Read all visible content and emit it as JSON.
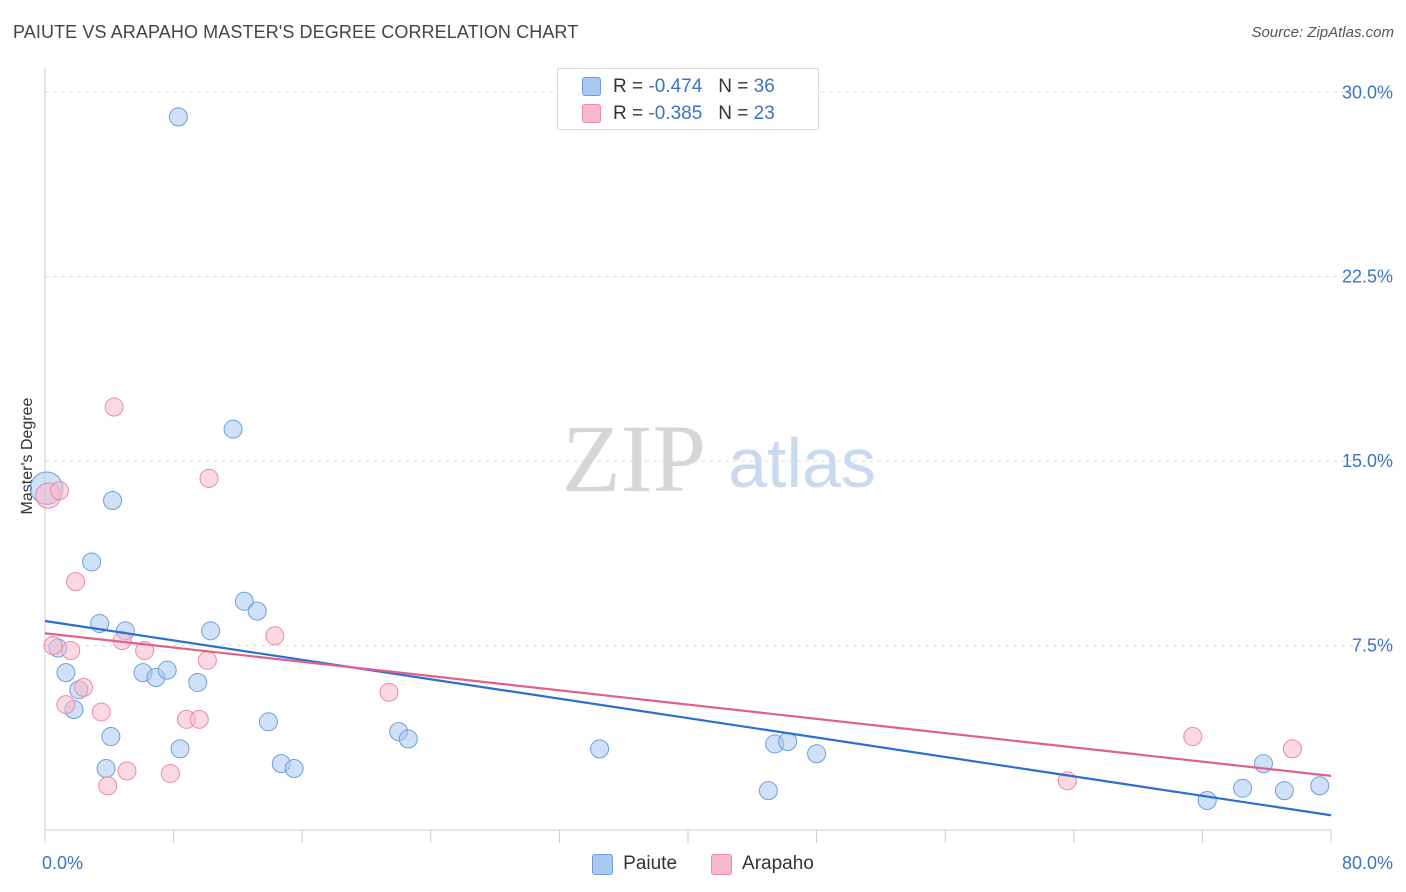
{
  "header": {
    "title": "PAIUTE VS ARAPAHO MASTER'S DEGREE CORRELATION CHART",
    "source": "Source: ZipAtlas.com"
  },
  "watermark": {
    "zip": "ZIP",
    "atlas": "atlas"
  },
  "legend": {
    "rows": [
      {
        "r_label": "R =",
        "r_value": "-0.474",
        "n_label": "N =",
        "n_value": "36"
      },
      {
        "r_label": "R =",
        "r_value": "-0.385",
        "n_label": "N =",
        "n_value": "23"
      }
    ]
  },
  "chart_data": {
    "type": "scatter",
    "title": "PAIUTE VS ARAPAHO MASTER'S DEGREE CORRELATION CHART",
    "xlabel": "",
    "ylabel": "Master's Degree",
    "xlim": [
      0,
      80
    ],
    "ylim": [
      0,
      30.5
    ],
    "y_ticks": [
      7.5,
      15.0,
      22.5,
      30.0
    ],
    "y_tick_labels": [
      "7.5%",
      "15.0%",
      "22.5%",
      "30.0%"
    ],
    "x_tick_labels": {
      "min": "0.0%",
      "max": "80.0%"
    },
    "grid": true,
    "legend_placement": "top-center",
    "colors": {
      "paiute_fill": "#aac8f0",
      "paiute_stroke": "#6a9fdc",
      "paiute_line": "#2b6fd0",
      "arapaho_fill": "#f7b9cb",
      "arapaho_stroke": "#ee88a8",
      "arapaho_line": "#e0608c",
      "tick_label": "#3a73c4"
    },
    "series": [
      {
        "name": "Paiute",
        "trend": [
          [
            0,
            8.5
          ],
          [
            80,
            0.6
          ]
        ],
        "points": [
          [
            0.1,
            13.9,
            1.8
          ],
          [
            0.8,
            7.4,
            1
          ],
          [
            1.3,
            6.4,
            1
          ],
          [
            1.8,
            4.9,
            1
          ],
          [
            2.1,
            5.7,
            1
          ],
          [
            2.9,
            10.9,
            1
          ],
          [
            3.4,
            8.4,
            1
          ],
          [
            3.8,
            2.5,
            1
          ],
          [
            4.1,
            3.8,
            1
          ],
          [
            4.2,
            13.4,
            1
          ],
          [
            5.0,
            8.1,
            1
          ],
          [
            6.1,
            6.4,
            1
          ],
          [
            6.9,
            6.2,
            1
          ],
          [
            7.6,
            6.5,
            1
          ],
          [
            8.3,
            29.0,
            1
          ],
          [
            8.4,
            3.3,
            1
          ],
          [
            9.5,
            6.0,
            1
          ],
          [
            10.3,
            8.1,
            1
          ],
          [
            11.7,
            16.3,
            1
          ],
          [
            12.4,
            9.3,
            1
          ],
          [
            13.2,
            8.9,
            1
          ],
          [
            13.9,
            4.4,
            1
          ],
          [
            14.7,
            2.7,
            1
          ],
          [
            15.5,
            2.5,
            1
          ],
          [
            22.0,
            4.0,
            1
          ],
          [
            22.6,
            3.7,
            1
          ],
          [
            34.5,
            3.3,
            1
          ],
          [
            45.0,
            1.6,
            1
          ],
          [
            45.4,
            3.5,
            1
          ],
          [
            46.2,
            3.6,
            1
          ],
          [
            48.0,
            3.1,
            1
          ],
          [
            72.3,
            1.2,
            1
          ],
          [
            74.5,
            1.7,
            1
          ],
          [
            75.8,
            2.7,
            1
          ],
          [
            77.1,
            1.6,
            1
          ],
          [
            79.3,
            1.8,
            1
          ]
        ]
      },
      {
        "name": "Arapaho",
        "trend": [
          [
            0,
            8.0
          ],
          [
            80,
            2.2
          ]
        ],
        "points": [
          [
            0.2,
            13.6,
            1.4
          ],
          [
            0.5,
            7.5,
            1
          ],
          [
            0.9,
            13.8,
            1
          ],
          [
            1.3,
            5.1,
            1
          ],
          [
            1.6,
            7.3,
            1
          ],
          [
            1.9,
            10.1,
            1
          ],
          [
            2.4,
            5.8,
            1
          ],
          [
            3.5,
            4.8,
            1
          ],
          [
            3.9,
            1.8,
            1
          ],
          [
            4.3,
            17.2,
            1
          ],
          [
            4.8,
            7.7,
            1
          ],
          [
            5.1,
            2.4,
            1
          ],
          [
            6.2,
            7.3,
            1
          ],
          [
            7.8,
            2.3,
            1
          ],
          [
            8.8,
            4.5,
            1
          ],
          [
            9.6,
            4.5,
            1
          ],
          [
            10.1,
            6.9,
            1
          ],
          [
            10.2,
            14.3,
            1
          ],
          [
            14.3,
            7.9,
            1
          ],
          [
            21.4,
            5.6,
            1
          ],
          [
            63.6,
            2.0,
            1
          ],
          [
            71.4,
            3.8,
            1
          ],
          [
            77.6,
            3.3,
            1
          ]
        ]
      }
    ]
  }
}
